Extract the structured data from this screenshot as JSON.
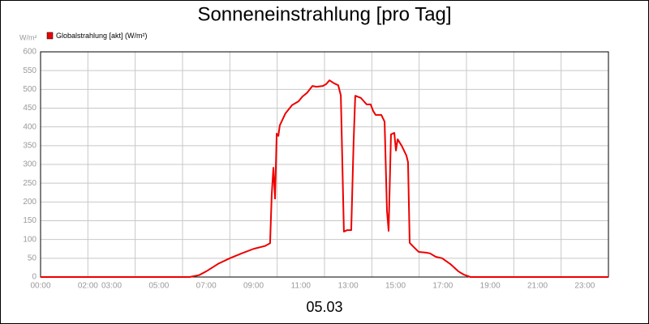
{
  "chart_data": {
    "type": "line",
    "title": "Sonneneinstrahlung [pro Tag]",
    "y_label": "W/m²",
    "x_label": "05.03",
    "x": [
      0,
      6.3,
      6.7,
      7,
      7.5,
      8,
      8.5,
      9,
      9.5,
      9.7,
      9.77,
      9.84,
      9.91,
      9.98,
      10.05,
      10.11,
      10.35,
      10.63,
      10.9,
      11.07,
      11.25,
      11.49,
      11.66,
      11.93,
      12.07,
      12.21,
      12.41,
      12.58,
      12.69,
      12.82,
      12.96,
      13.13,
      13.23,
      13.3,
      13.54,
      13.78,
      13.95,
      14.06,
      14.16,
      14.4,
      14.54,
      14.64,
      14.71,
      14.81,
      14.95,
      15.02,
      15.09,
      15.26,
      15.46,
      15.53,
      15.6,
      15.77,
      15.98,
      16.29,
      16.46,
      16.7,
      16.97,
      17.31,
      17.66,
      17.9,
      18.17,
      24
    ],
    "series": [
      {
        "name": "Globalstrahlung [akt] (W/m²)",
        "color": "#ee0000",
        "values": [
          0,
          0,
          5,
          15,
          35,
          50,
          63,
          75,
          83,
          90,
          220,
          291,
          209,
          382,
          376,
          404,
          436,
          458,
          468,
          481,
          490,
          509,
          507,
          509,
          514,
          524,
          516,
          511,
          484,
          121,
          125,
          125,
          360,
          483,
          477,
          460,
          460,
          442,
          432,
          432,
          414,
          177,
          123,
          380,
          384,
          337,
          367,
          350,
          324,
          306,
          91,
          80,
          67,
          65,
          63,
          54,
          50,
          35,
          15,
          6,
          0,
          0
        ]
      }
    ],
    "xlim": [
      0,
      24
    ],
    "ylim": [
      0,
      600
    ],
    "xticks": [
      {
        "value": 0,
        "label": "00:00"
      },
      {
        "value": 2,
        "label": "02:00"
      },
      {
        "value": 3,
        "label": "03:00"
      },
      {
        "value": 5,
        "label": "05:00"
      },
      {
        "value": 7,
        "label": "07:00"
      },
      {
        "value": 9,
        "label": "09:00"
      },
      {
        "value": 11,
        "label": "11:00"
      },
      {
        "value": 13,
        "label": "13:00"
      },
      {
        "value": 15,
        "label": "15:00"
      },
      {
        "value": 17,
        "label": "17:00"
      },
      {
        "value": 19,
        "label": "19:00"
      },
      {
        "value": 21,
        "label": "21:00"
      },
      {
        "value": 23,
        "label": "23:00"
      }
    ],
    "xgrid": [
      0,
      2,
      4,
      6,
      8,
      10,
      12,
      14,
      16,
      18,
      20,
      22,
      24
    ],
    "yticks": [
      0,
      50,
      100,
      150,
      200,
      250,
      300,
      350,
      400,
      450,
      500,
      550,
      600
    ],
    "grid": true
  }
}
